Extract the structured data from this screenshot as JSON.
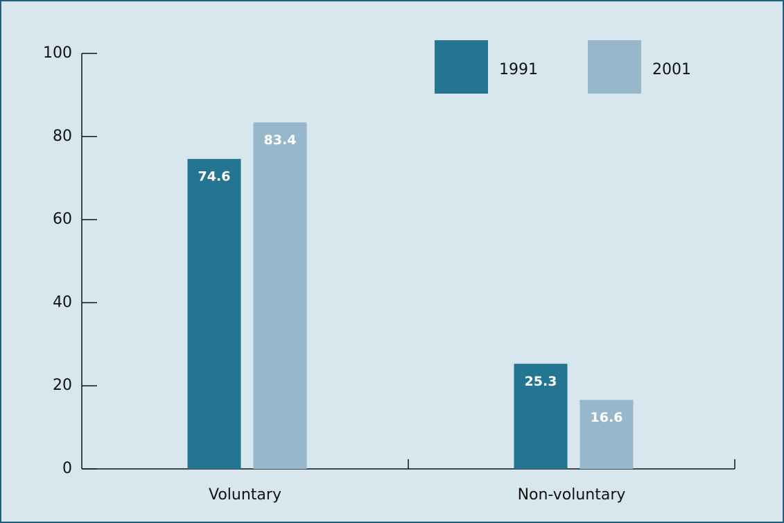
{
  "chart_data": {
    "type": "bar",
    "categories": [
      "Voluntary",
      "Non-voluntary"
    ],
    "series": [
      {
        "name": "1991",
        "color": "#237592",
        "values": [
          74.6,
          25.3
        ]
      },
      {
        "name": "2001",
        "color": "#97b7ca",
        "values": [
          83.4,
          16.6
        ]
      }
    ],
    "ylim": [
      0,
      100
    ],
    "yticks": [
      0,
      20,
      40,
      60,
      80,
      100
    ],
    "grid": false,
    "legend": "top-right"
  }
}
